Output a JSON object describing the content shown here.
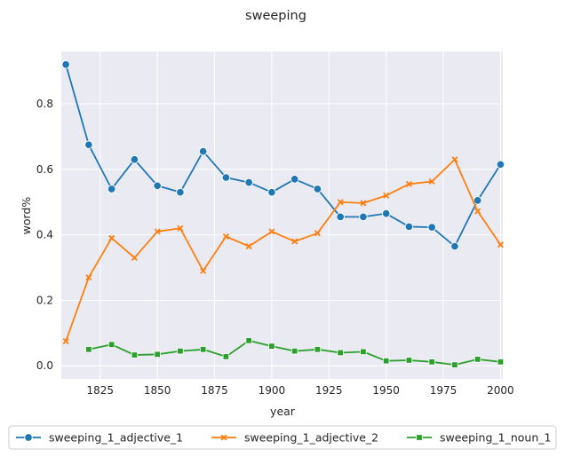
{
  "chart_data": {
    "type": "line",
    "title": "sweeping",
    "xlabel": "year",
    "ylabel": "word%",
    "xlim": [
      1808,
      2001
    ],
    "ylim": [
      -0.04,
      0.96
    ],
    "xticks": [
      1825,
      1850,
      1875,
      1900,
      1925,
      1950,
      1975,
      2000
    ],
    "yticks": [
      0.0,
      0.2,
      0.4,
      0.6,
      0.8
    ],
    "ytick_labels": [
      "0.0",
      "0.2",
      "0.4",
      "0.6",
      "0.8"
    ],
    "grid": true,
    "legend_position": "bottom",
    "series": [
      {
        "name": "sweeping_1_adjective_1",
        "color": "#1f77b4",
        "marker": "circle",
        "x": [
          1810,
          1820,
          1830,
          1840,
          1850,
          1860,
          1870,
          1880,
          1890,
          1900,
          1910,
          1920,
          1930,
          1940,
          1950,
          1960,
          1970,
          1980,
          1990,
          2000
        ],
        "y": [
          0.92,
          0.675,
          0.54,
          0.63,
          0.55,
          0.53,
          0.655,
          0.575,
          0.56,
          0.53,
          0.57,
          0.54,
          0.455,
          0.455,
          0.465,
          0.425,
          0.423,
          0.365,
          0.505,
          0.615
        ]
      },
      {
        "name": "sweeping_1_adjective_2",
        "color": "#ff7f0e",
        "marker": "x",
        "x": [
          1810,
          1820,
          1830,
          1840,
          1850,
          1860,
          1870,
          1880,
          1890,
          1900,
          1910,
          1920,
          1930,
          1940,
          1950,
          1960,
          1970,
          1980,
          1990,
          2000
        ],
        "y": [
          0.075,
          0.27,
          0.39,
          0.33,
          0.41,
          0.42,
          0.29,
          0.395,
          0.365,
          0.41,
          0.38,
          0.405,
          0.5,
          0.497,
          0.52,
          0.555,
          0.563,
          0.63,
          0.472,
          0.37
        ]
      },
      {
        "name": "sweeping_1_noun_1",
        "color": "#2ca02c",
        "marker": "square",
        "x": [
          1820,
          1830,
          1840,
          1850,
          1860,
          1870,
          1880,
          1890,
          1900,
          1910,
          1920,
          1930,
          1940,
          1950,
          1960,
          1970,
          1980,
          1990,
          2000
        ],
        "y": [
          0.05,
          0.065,
          0.033,
          0.035,
          0.045,
          0.05,
          0.028,
          0.077,
          0.06,
          0.045,
          0.05,
          0.04,
          0.043,
          0.015,
          0.017,
          0.012,
          0.003,
          0.02,
          0.012
        ]
      }
    ]
  }
}
